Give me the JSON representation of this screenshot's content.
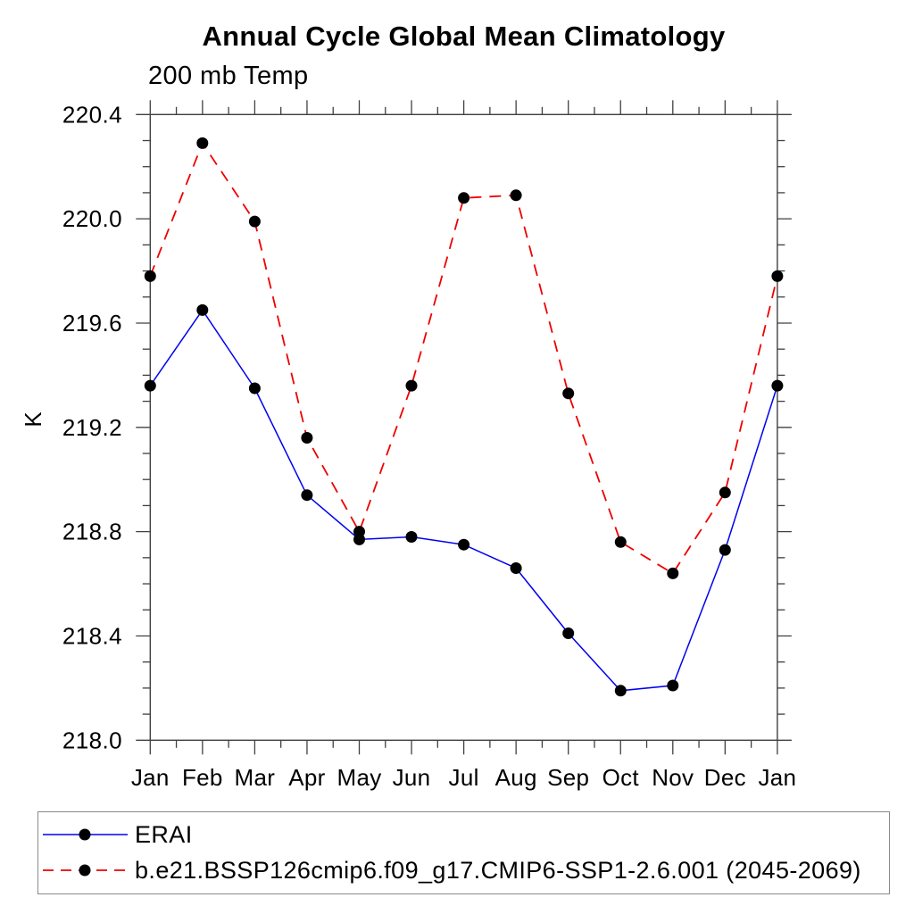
{
  "chart_data": {
    "type": "line",
    "title": "Annual Cycle Global Mean Climatology",
    "subtitle": "200 mb Temp",
    "xlabel": "",
    "ylabel": "K",
    "categories": [
      "Jan",
      "Feb",
      "Mar",
      "Apr",
      "May",
      "Jun",
      "Jul",
      "Aug",
      "Sep",
      "Oct",
      "Nov",
      "Dec",
      "Jan"
    ],
    "ylim": [
      218.0,
      220.4
    ],
    "ytick_major_step": 0.4,
    "ytick_minor_step": 0.1,
    "ytick_labels": [
      "218.0",
      "218.4",
      "218.8",
      "219.2",
      "219.6",
      "220.0",
      "220.4"
    ],
    "grid": false,
    "legend_position": "bottom-left-box",
    "series": [
      {
        "name": "ERAI",
        "color": "#0000ee",
        "line_style": "solid",
        "marker": "filled-circle",
        "marker_color": "#000000",
        "values": [
          219.36,
          219.65,
          219.35,
          218.94,
          218.77,
          218.78,
          218.75,
          218.66,
          218.41,
          218.19,
          218.21,
          218.73,
          219.36
        ]
      },
      {
        "name": "b.e21.BSSP126cmip6.f09_g17.CMIP6-SSP1-2.6.001 (2045-2069)",
        "color": "#ee0000",
        "line_style": "dashed",
        "marker": "filled-circle",
        "marker_color": "#000000",
        "values": [
          219.78,
          220.29,
          219.99,
          219.16,
          218.8,
          219.36,
          220.08,
          220.09,
          219.33,
          218.76,
          218.64,
          218.95,
          219.78
        ]
      }
    ]
  }
}
